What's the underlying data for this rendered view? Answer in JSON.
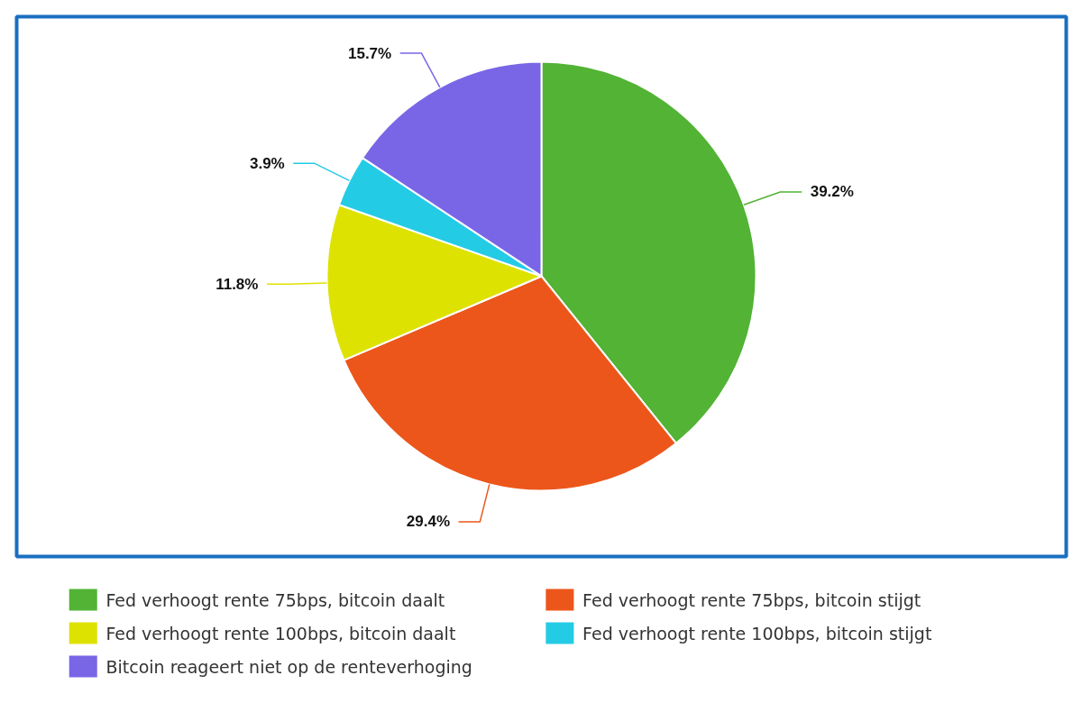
{
  "chart_data": {
    "type": "pie",
    "categories": [
      "Fed verhoogt rente 75bps, bitcoin daalt",
      "Fed verhoogt rente 75bps, bitcoin stijgt",
      "Fed verhoogt rente 100bps, bitcoin daalt",
      "Fed verhoogt rente 100bps, bitcoin stijgt",
      "Bitcoin reageert niet op de renteverhoging"
    ],
    "values": [
      39.2,
      29.4,
      11.8,
      3.9,
      15.7
    ],
    "colors": [
      "#52b335",
      "#ec561b",
      "#dde200",
      "#24cbe5",
      "#7966e6"
    ],
    "value_labels": [
      "39.2%",
      "29.4%",
      "11.8%",
      "3.9%",
      "15.7%"
    ],
    "legend": "bottom"
  }
}
